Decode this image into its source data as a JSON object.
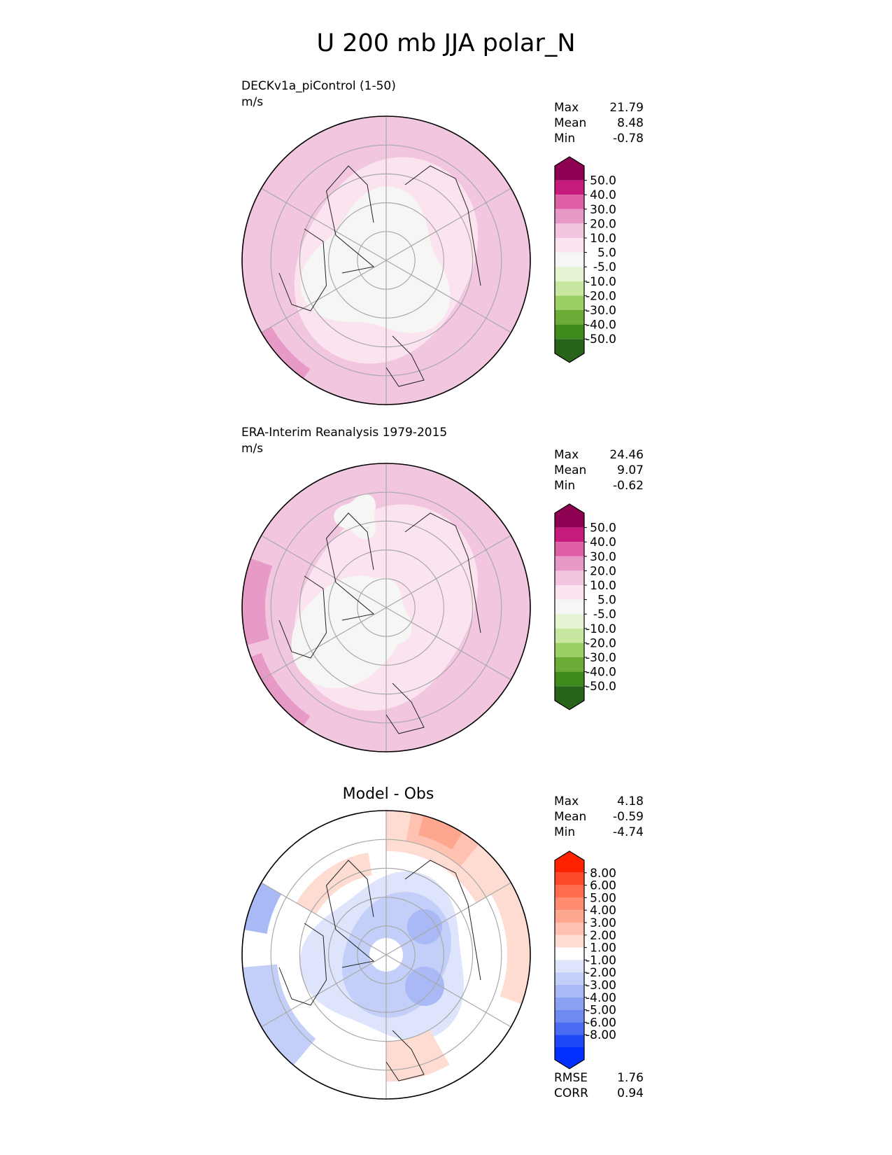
{
  "title": "U 200 mb JJA polar_N",
  "chart_data": [
    {
      "type": "heatmap",
      "id": "model",
      "title": "DECKv1a_piControl (1-50)",
      "units": "m/s",
      "projection": "north polar stereographic",
      "stats": [
        {
          "label": "Max",
          "value": "21.79"
        },
        {
          "label": "Mean",
          "value": "8.48"
        },
        {
          "label": "Min",
          "value": "-0.78"
        }
      ],
      "colorbar": {
        "extend": "both",
        "levels": [
          "50.0",
          "40.0",
          "30.0",
          "20.0",
          "10.0",
          "5.0",
          "-5.0",
          "-10.0",
          "-20.0",
          "-30.0",
          "-40.0",
          "-50.0"
        ],
        "colors": [
          "#8e0152",
          "#c51b7d",
          "#de5fa3",
          "#e89ac7",
          "#f3c6e0",
          "#fbe3ef",
          "#f6f6f4",
          "#e6f4d4",
          "#c8e8a2",
          "#9bd064",
          "#6cab35",
          "#3e8a1c",
          "#276419"
        ]
      },
      "zones": [
        {
          "lat_range": [
            80,
            90
          ],
          "value": "-5.0 to 5.0"
        },
        {
          "lat_range": [
            70,
            80
          ],
          "value": "-5.0 to 5.0"
        },
        {
          "lat_range": [
            55,
            70
          ],
          "value": "5.0 to 10.0"
        },
        {
          "lat_range": [
            40,
            55
          ],
          "value": "10.0 to 20.0"
        }
      ]
    },
    {
      "type": "heatmap",
      "id": "obs",
      "title": "ERA-Interim Reanalysis 1979-2015",
      "units": "m/s",
      "projection": "north polar stereographic",
      "stats": [
        {
          "label": "Max",
          "value": "24.46"
        },
        {
          "label": "Mean",
          "value": "9.07"
        },
        {
          "label": "Min",
          "value": "-0.62"
        }
      ],
      "colorbar": {
        "extend": "both",
        "levels": [
          "50.0",
          "40.0",
          "30.0",
          "20.0",
          "10.0",
          "5.0",
          "-5.0",
          "-10.0",
          "-20.0",
          "-30.0",
          "-40.0",
          "-50.0"
        ],
        "colors": [
          "#8e0152",
          "#c51b7d",
          "#de5fa3",
          "#e89ac7",
          "#f3c6e0",
          "#fbe3ef",
          "#f6f6f4",
          "#e6f4d4",
          "#c8e8a2",
          "#9bd064",
          "#6cab35",
          "#3e8a1c",
          "#276419"
        ]
      },
      "zones": [
        {
          "lat_range": [
            80,
            90
          ],
          "value": "-5.0 to 5.0"
        },
        {
          "lat_range": [
            70,
            80
          ],
          "value": "5.0 to 10.0"
        },
        {
          "lat_range": [
            55,
            70
          ],
          "value": "5.0 to 10.0"
        },
        {
          "lat_range": [
            40,
            55
          ],
          "value": "10.0 to 20.0"
        }
      ]
    },
    {
      "type": "heatmap",
      "id": "diff",
      "title": "Model - Obs",
      "units": "",
      "projection": "north polar stereographic",
      "stats": [
        {
          "label": "Max",
          "value": "4.18"
        },
        {
          "label": "Mean",
          "value": "-0.59"
        },
        {
          "label": "Min",
          "value": "-4.74"
        }
      ],
      "metrics": [
        {
          "label": "RMSE",
          "value": "1.76"
        },
        {
          "label": "CORR",
          "value": "0.94"
        }
      ],
      "colorbar": {
        "extend": "both",
        "levels": [
          "8.00",
          "6.00",
          "5.00",
          "4.00",
          "3.00",
          "2.00",
          "1.00",
          "-1.00",
          "-2.00",
          "-3.00",
          "-4.00",
          "-5.00",
          "-6.00",
          "-8.00"
        ],
        "colors": [
          "#ff2200",
          "#ff4a2a",
          "#ff6d4d",
          "#ff8c70",
          "#ffa68f",
          "#ffc2b0",
          "#fedcd2",
          "#ffffff",
          "#dde4fb",
          "#c3cff8",
          "#a8b9f5",
          "#8ba2f3",
          "#6f8af2",
          "#4a6cf2",
          "#1e48f5",
          "#0030ff"
        ]
      },
      "zones": [
        {
          "lat_range": [
            85,
            90
          ],
          "value": "-1.00 to 1.00"
        },
        {
          "lat_range": [
            70,
            85
          ],
          "value": "-2.00 to -1.00"
        },
        {
          "lat_range": [
            55,
            70
          ],
          "value": "-1.00 to 1.00"
        },
        {
          "lat_range": [
            40,
            55
          ],
          "value": "-1.00 to 1.00"
        }
      ]
    }
  ]
}
